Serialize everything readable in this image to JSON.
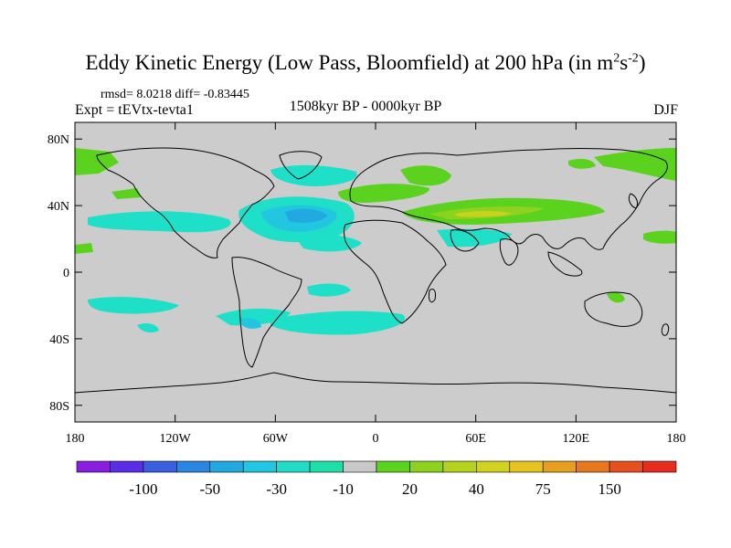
{
  "figure": {
    "title": "Eddy Kinetic Energy (Low Pass, Bloomfield) at 200 hPa (in m",
    "title_sup1": "2",
    "title_mid": "s",
    "title_sup2": "-2",
    "title_close": ")",
    "stats": "rmsd= 8.0218 diff= -0.83445",
    "experiment": "Expt = tEVtx-tevta1",
    "period": "1508kyr BP - 0000kyr BP",
    "season": "DJF"
  },
  "axes": {
    "lat_labels": [
      "80N",
      "40N",
      "0",
      "40S",
      "80S"
    ],
    "lat_values": [
      80,
      40,
      0,
      -40,
      -80
    ],
    "lon_labels": [
      "180",
      "120W",
      "60W",
      "0",
      "60E",
      "120E",
      "180"
    ],
    "lon_values": [
      -180,
      -120,
      -60,
      0,
      60,
      120,
      180
    ]
  },
  "colorbar": {
    "colors": [
      "#8a1ee0",
      "#5a2ee6",
      "#3b5fe0",
      "#2a86e0",
      "#22a9e0",
      "#22c6e0",
      "#22dcc8",
      "#1ee0a6",
      "#c8c8c8",
      "#5ad21e",
      "#8cd21e",
      "#b4d21e",
      "#d2d21e",
      "#e6c31e",
      "#e6a01e",
      "#e6781e",
      "#e6501e",
      "#e62d1e"
    ],
    "labels": [
      "-100",
      "-50",
      "-30",
      "-10",
      "20",
      "40",
      "75",
      "150"
    ]
  },
  "map": {
    "background_color": "#cccccc",
    "contour_colors": {
      "neg_light": "#1ee0c8",
      "neg_mid": "#22c6e0",
      "neg_dark": "#22a9e0",
      "pos_light": "#5ad21e",
      "pos_mid": "#8cd21e",
      "pos_high": "#c8d21e"
    }
  }
}
